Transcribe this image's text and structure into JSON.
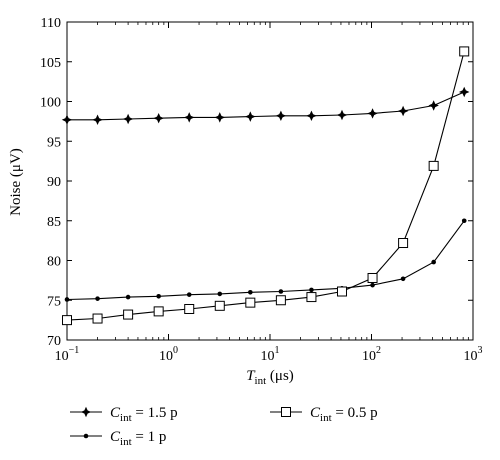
{
  "chart_data": {
    "type": "line",
    "title": "",
    "xlabel": "T_int (μs)",
    "ylabel": "Noise (μV)",
    "x_scale": "log",
    "xlim": [
      0.1,
      1000
    ],
    "ylim": [
      70,
      110
    ],
    "x_ticks": [
      0.1,
      1,
      10,
      100,
      1000
    ],
    "x_tick_labels": [
      {
        "base": "10",
        "exp": "−1"
      },
      {
        "base": "10",
        "exp": "0"
      },
      {
        "base": "10",
        "exp": "1"
      },
      {
        "base": "10",
        "exp": "2"
      },
      {
        "base": "10",
        "exp": "3"
      }
    ],
    "y_ticks": [
      "70",
      "75",
      "80",
      "85",
      "90",
      "95",
      "100",
      "105",
      "110"
    ],
    "grid": false,
    "legend_position": "bottom",
    "x": [
      0.1,
      0.2,
      0.4,
      0.8,
      1.6,
      3.2,
      6.4,
      12.8,
      25.6,
      51.2,
      102.4,
      204.8,
      409.6,
      819.2
    ],
    "series": [
      {
        "name": "C_int = 1.5 p",
        "marker": "star",
        "values": [
          97.7,
          97.7,
          97.8,
          97.9,
          98.0,
          98.0,
          98.1,
          98.2,
          98.2,
          98.3,
          98.5,
          98.8,
          99.5,
          101.2
        ]
      },
      {
        "name": "C_int = 1 p",
        "marker": "dot",
        "values": [
          75.1,
          75.2,
          75.4,
          75.5,
          75.7,
          75.8,
          76.0,
          76.1,
          76.3,
          76.5,
          76.9,
          77.7,
          79.8,
          85.0
        ]
      },
      {
        "name": "C_int = 0.5 p",
        "marker": "square",
        "values": [
          72.5,
          72.7,
          73.2,
          73.6,
          73.9,
          74.3,
          74.7,
          75.0,
          75.4,
          76.1,
          77.8,
          82.2,
          91.9,
          106.3
        ]
      }
    ],
    "legend": [
      {
        "sym": "C",
        "sub": "int",
        "rest": " = 1.5 p",
        "marker": "star"
      },
      {
        "sym": "C",
        "sub": "int",
        "rest": " = 1 p",
        "marker": "dot"
      },
      {
        "sym": "C",
        "sub": "int",
        "rest": " = 0.5 p",
        "marker": "square"
      }
    ],
    "xlabel_parts": {
      "sym": "T",
      "sub": "int",
      "rest": " (μs)"
    },
    "ylabel_text": "Noise (μV)"
  }
}
